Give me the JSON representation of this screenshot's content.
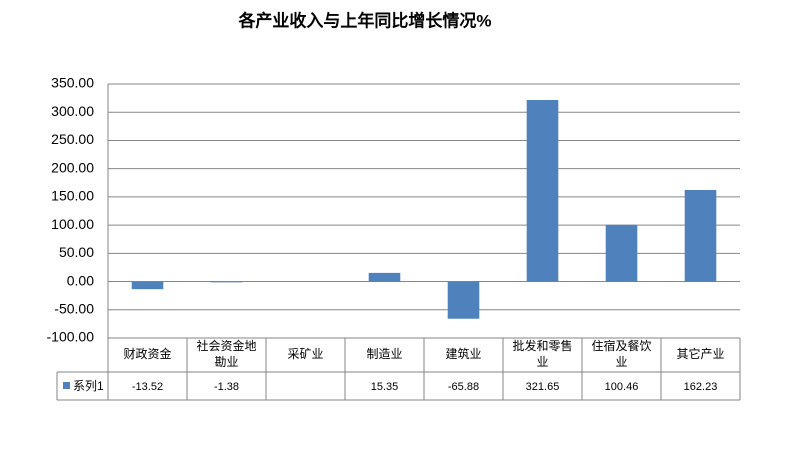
{
  "chart_data": {
    "type": "bar",
    "title": "各产业收入与上年同比增长情况%",
    "categories": [
      "财政资金",
      "社会资金地勘业",
      "采矿业",
      "制造业",
      "建筑业",
      "批发和零售业",
      "住宿及餐饮业",
      "其它产业"
    ],
    "series": [
      {
        "name": "系列1",
        "color": "#4f81bd",
        "values": [
          -13.52,
          -1.38,
          null,
          15.35,
          -65.88,
          321.65,
          100.46,
          162.23
        ]
      }
    ],
    "ylim": [
      -100,
      350
    ],
    "yticks": [
      {
        "value": -100,
        "label": "-100.00"
      },
      {
        "value": -50,
        "label": "-50.00"
      },
      {
        "value": 0,
        "label": "0.00"
      },
      {
        "value": 50,
        "label": "50.00"
      },
      {
        "value": 100,
        "label": "100.00"
      },
      {
        "value": 150,
        "label": "150.00"
      },
      {
        "value": 200,
        "label": "200.00"
      },
      {
        "value": 250,
        "label": "250.00"
      },
      {
        "value": 300,
        "label": "300.00"
      },
      {
        "value": 350,
        "label": "350.00"
      }
    ],
    "grid": true
  }
}
